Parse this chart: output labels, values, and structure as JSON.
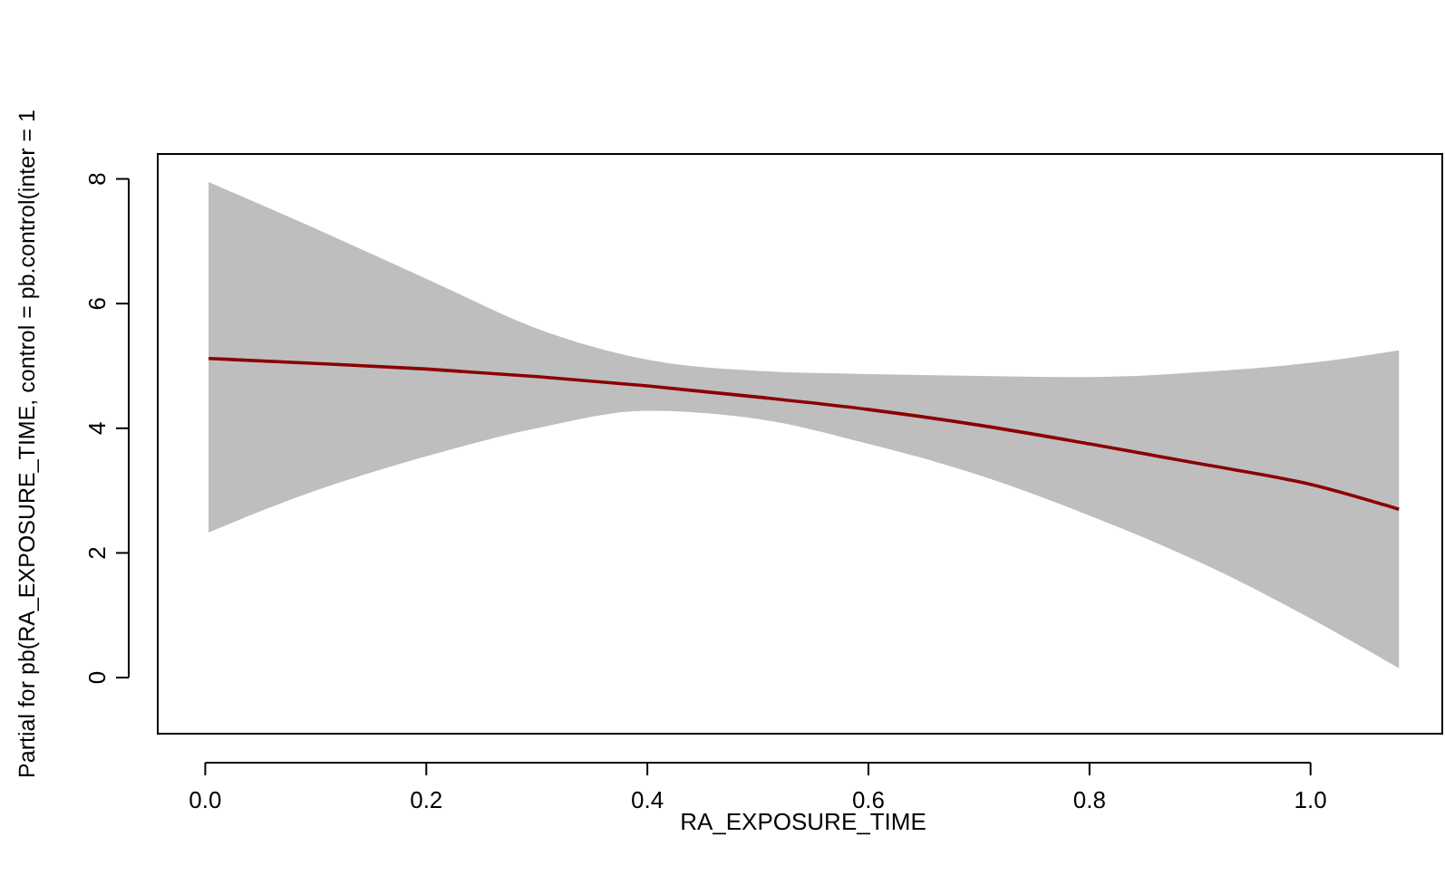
{
  "chart_data": {
    "type": "line",
    "xlabel": "RA_EXPOSURE_TIME",
    "ylabel": "Partial for pb(RA_EXPOSURE_TIME, control = pb.control(inter = 1",
    "x": [
      0.003,
      0.1,
      0.2,
      0.3,
      0.4,
      0.5,
      0.6,
      0.7,
      0.8,
      0.9,
      1.0,
      1.08
    ],
    "series": [
      {
        "color": "#8b0000",
        "values": [
          5.12,
          5.04,
          4.95,
          4.83,
          4.68,
          4.5,
          4.3,
          4.05,
          3.75,
          3.43,
          3.1,
          2.7
        ],
        "lower": [
          2.33,
          3.0,
          3.55,
          4.0,
          4.28,
          4.15,
          3.75,
          3.25,
          2.6,
          1.85,
          0.95,
          0.15
        ],
        "upper": [
          7.95,
          7.2,
          6.4,
          5.6,
          5.1,
          4.92,
          4.87,
          4.84,
          4.82,
          4.9,
          5.05,
          5.25
        ]
      }
    ],
    "xlim": [
      -0.043,
      1.12
    ],
    "ylim": [
      -0.9,
      8.4
    ],
    "xticks": [
      {
        "value": 0,
        "label": "0.0"
      },
      0.2,
      0.4,
      0.6,
      0.8,
      {
        "value": 1,
        "label": "1.0"
      }
    ],
    "yticks": [
      0,
      2,
      4,
      6,
      8
    ],
    "grid": false,
    "marker": "none",
    "line_style": "solid"
  }
}
